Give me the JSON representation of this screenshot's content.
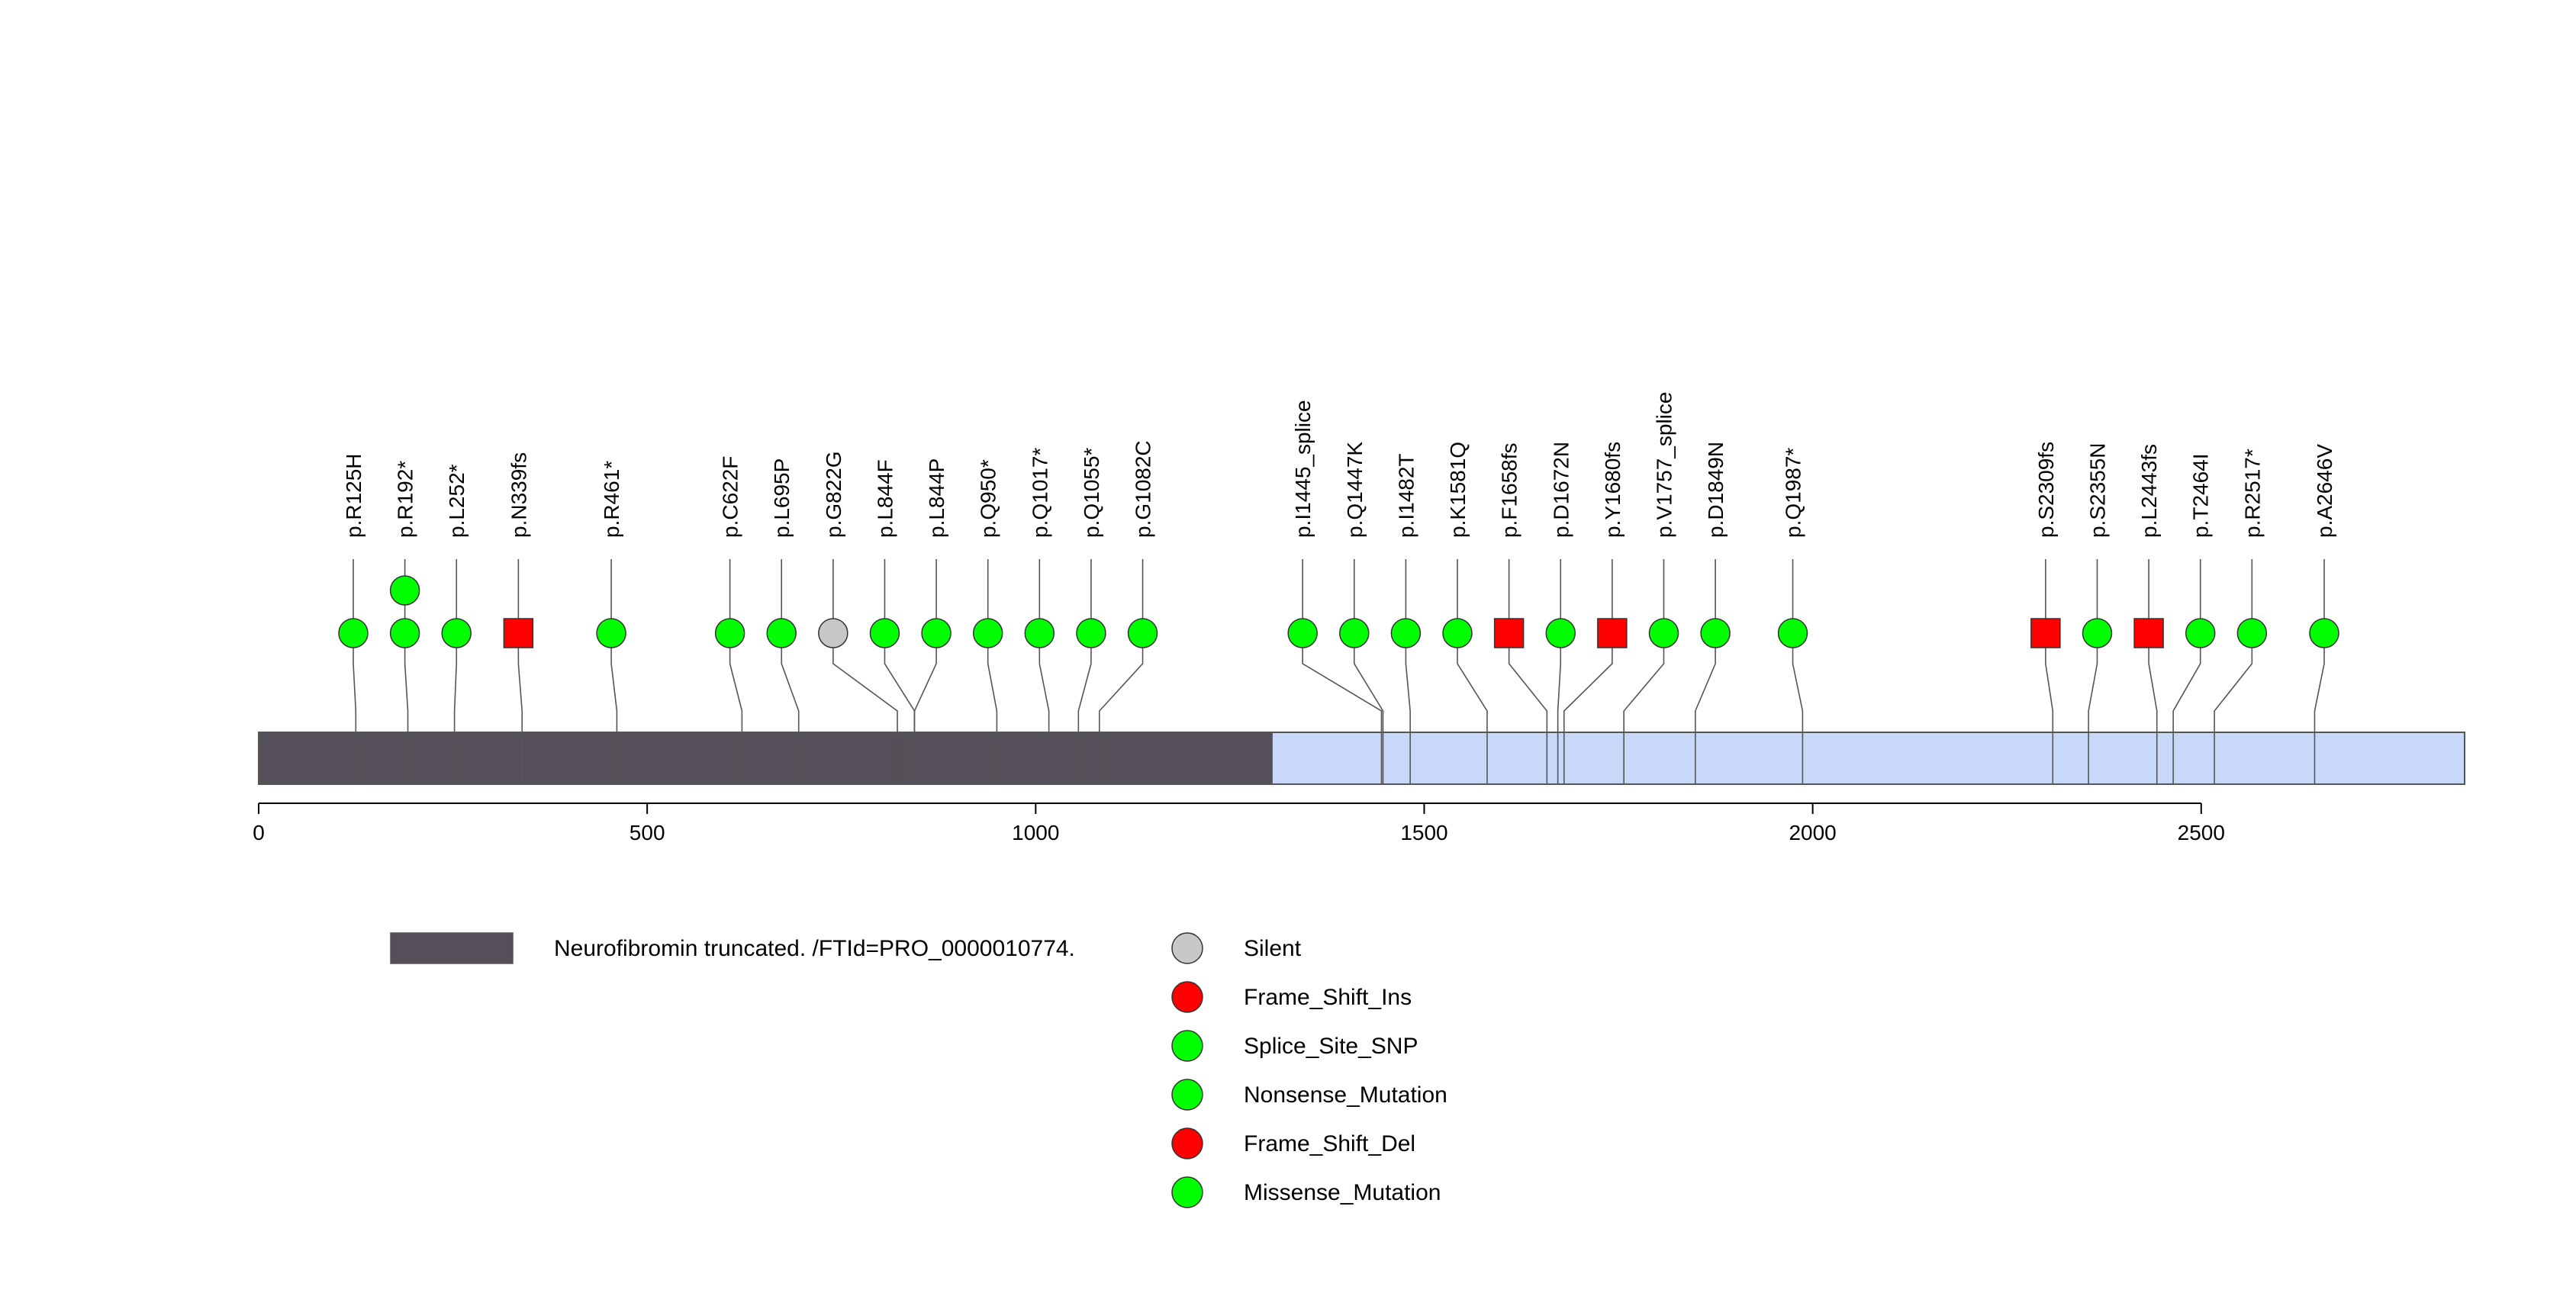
{
  "chart_data": {
    "type": "lollipop",
    "x_axis": {
      "range": [
        0,
        2839
      ],
      "ticks": [
        0,
        500,
        1000,
        1500,
        2000,
        2500
      ]
    },
    "protein_length": 2839,
    "domains": [
      {
        "name": "Neurofibromin truncated. /FTId=PRO_0000010774.",
        "start": 1,
        "end": 1304,
        "color": "#544f58"
      }
    ],
    "backbone_color": "#c8d8f8",
    "colors": {
      "Silent": "#c8c8c8",
      "Frame_Shift_Ins": "#ff0000",
      "Splice_Site_SNP": "#00ff00",
      "Nonsense_Mutation": "#00ff00",
      "Frame_Shift_Del": "#ff0000",
      "Missense_Mutation": "#00ff00"
    },
    "mutations": [
      {
        "label": "p.R125H",
        "position": 125,
        "type": "Missense_Mutation",
        "count": 1
      },
      {
        "label": "p.R192*",
        "position": 192,
        "type": "Nonsense_Mutation",
        "count": 2
      },
      {
        "label": "p.L252*",
        "position": 252,
        "type": "Nonsense_Mutation",
        "count": 1
      },
      {
        "label": "p.N339fs",
        "position": 339,
        "type": "Frame_Shift_Ins",
        "count": 1
      },
      {
        "label": "p.R461*",
        "position": 461,
        "type": "Nonsense_Mutation",
        "count": 1
      },
      {
        "label": "p.C622F",
        "position": 622,
        "type": "Missense_Mutation",
        "count": 1
      },
      {
        "label": "p.L695P",
        "position": 695,
        "type": "Missense_Mutation",
        "count": 1
      },
      {
        "label": "p.G822G",
        "position": 822,
        "type": "Silent",
        "count": 1
      },
      {
        "label": "p.L844F",
        "position": 844,
        "type": "Missense_Mutation",
        "count": 1
      },
      {
        "label": "p.L844P",
        "position": 844,
        "type": "Missense_Mutation",
        "count": 1
      },
      {
        "label": "p.Q950*",
        "position": 950,
        "type": "Nonsense_Mutation",
        "count": 1
      },
      {
        "label": "p.Q1017*",
        "position": 1017,
        "type": "Nonsense_Mutation",
        "count": 1
      },
      {
        "label": "p.Q1055*",
        "position": 1055,
        "type": "Nonsense_Mutation",
        "count": 1
      },
      {
        "label": "p.G1082C",
        "position": 1082,
        "type": "Missense_Mutation",
        "count": 1
      },
      {
        "label": "p.I1445_splice",
        "position": 1445,
        "type": "Splice_Site_SNP",
        "count": 1
      },
      {
        "label": "p.Q1447K",
        "position": 1447,
        "type": "Missense_Mutation",
        "count": 1
      },
      {
        "label": "p.I1482T",
        "position": 1482,
        "type": "Missense_Mutation",
        "count": 1
      },
      {
        "label": "p.K1581Q",
        "position": 1581,
        "type": "Missense_Mutation",
        "count": 1
      },
      {
        "label": "p.F1658fs",
        "position": 1658,
        "type": "Frame_Shift_Del",
        "count": 1
      },
      {
        "label": "p.D1672N",
        "position": 1672,
        "type": "Missense_Mutation",
        "count": 1
      },
      {
        "label": "p.Y1680fs",
        "position": 1680,
        "type": "Frame_Shift_Ins",
        "count": 1
      },
      {
        "label": "p.V1757_splice",
        "position": 1757,
        "type": "Splice_Site_SNP",
        "count": 1
      },
      {
        "label": "p.D1849N",
        "position": 1849,
        "type": "Missense_Mutation",
        "count": 1
      },
      {
        "label": "p.Q1987*",
        "position": 1987,
        "type": "Nonsense_Mutation",
        "count": 1
      },
      {
        "label": "p.S2309fs",
        "position": 2309,
        "type": "Frame_Shift_Del",
        "count": 1
      },
      {
        "label": "p.S2355N",
        "position": 2355,
        "type": "Missense_Mutation",
        "count": 1
      },
      {
        "label": "p.L2443fs",
        "position": 2443,
        "type": "Frame_Shift_Ins",
        "count": 1
      },
      {
        "label": "p.T2464I",
        "position": 2464,
        "type": "Missense_Mutation",
        "count": 1
      },
      {
        "label": "p.R2517*",
        "position": 2517,
        "type": "Nonsense_Mutation",
        "count": 1
      },
      {
        "label": "p.A2646V",
        "position": 2646,
        "type": "Missense_Mutation",
        "count": 1
      }
    ],
    "legend": {
      "domain_entries": [
        "Neurofibromin truncated. /FTId=PRO_0000010774."
      ],
      "mutation_entries": [
        "Silent",
        "Frame_Shift_Ins",
        "Splice_Site_SNP",
        "Nonsense_Mutation",
        "Frame_Shift_Del",
        "Missense_Mutation"
      ]
    }
  }
}
